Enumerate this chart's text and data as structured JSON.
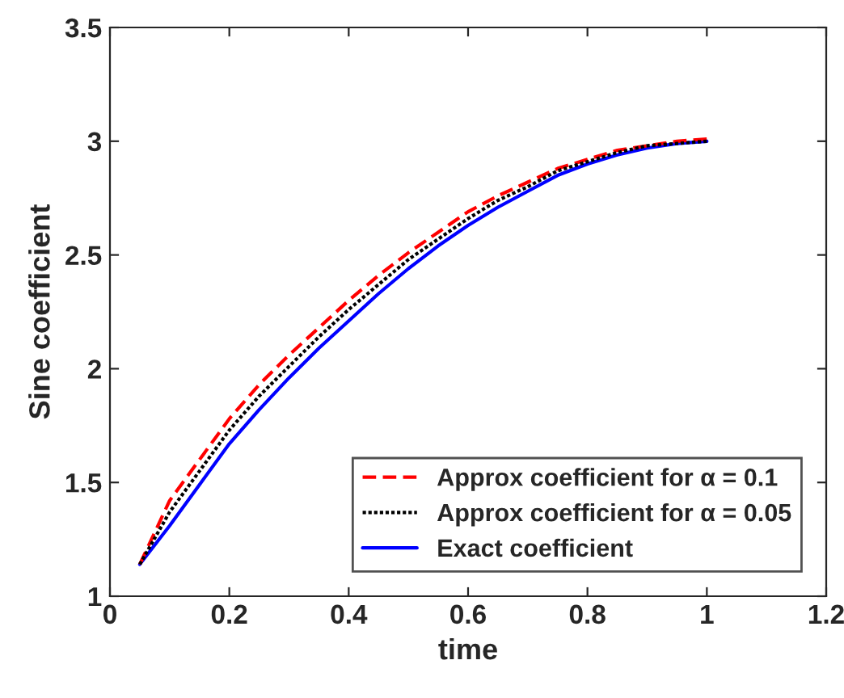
{
  "chart_data": {
    "type": "line",
    "xlabel": "time",
    "ylabel": "Sine coefficient",
    "x": [
      0.05,
      0.1,
      0.15,
      0.2,
      0.25,
      0.3,
      0.35,
      0.4,
      0.45,
      0.5,
      0.55,
      0.6,
      0.65,
      0.7,
      0.75,
      0.8,
      0.85,
      0.9,
      0.95,
      1.0
    ],
    "series": [
      {
        "name": "Approx coefficient for α = 0.1",
        "color": "#ff0000",
        "line_style": "dashed",
        "values": [
          1.14,
          1.42,
          1.6,
          1.78,
          1.93,
          2.06,
          2.18,
          2.3,
          2.41,
          2.51,
          2.6,
          2.69,
          2.76,
          2.82,
          2.88,
          2.92,
          2.96,
          2.98,
          3.0,
          3.01
        ]
      },
      {
        "name": "Approx coefficient for α = 0.05",
        "color": "#000000",
        "line_style": "dotted",
        "values": [
          1.14,
          1.37,
          1.55,
          1.73,
          1.88,
          2.01,
          2.14,
          2.26,
          2.37,
          2.48,
          2.57,
          2.66,
          2.74,
          2.8,
          2.87,
          2.91,
          2.95,
          2.98,
          2.99,
          3.0
        ]
      },
      {
        "name": "Exact coefficient",
        "color": "#0000ff",
        "line_style": "solid",
        "values": [
          1.14,
          1.31,
          1.49,
          1.67,
          1.82,
          1.96,
          2.09,
          2.21,
          2.33,
          2.44,
          2.54,
          2.63,
          2.71,
          2.78,
          2.85,
          2.9,
          2.94,
          2.97,
          2.99,
          3.0
        ]
      }
    ],
    "xlim": [
      0,
      1.2
    ],
    "xticks": [
      0,
      0.2,
      0.4,
      0.6,
      0.8,
      1,
      1.2
    ],
    "ylim": [
      1,
      3.5
    ],
    "yticks": [
      1,
      1.5,
      2,
      2.5,
      3,
      3.5
    ],
    "grid": false,
    "legend": "bottom right"
  }
}
